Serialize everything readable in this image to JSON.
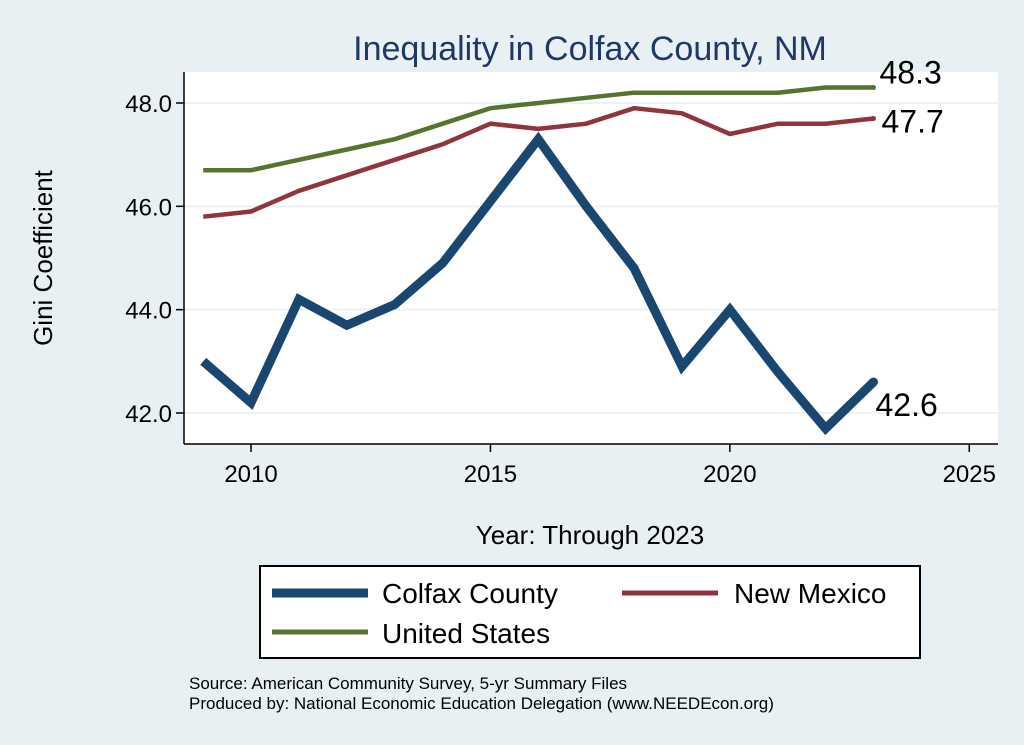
{
  "chart_data": {
    "type": "line",
    "title": "Inequality in Colfax County, NM",
    "xlabel": "Year: Through 2023",
    "ylabel": "Gini Coefficient",
    "xlim": [
      2008.6,
      2025.6
    ],
    "ylim": [
      41.4,
      48.6
    ],
    "x_ticks": [
      "2010",
      "2015",
      "2020",
      "2025"
    ],
    "y_ticks": [
      "42.0",
      "44.0",
      "46.0",
      "48.0"
    ],
    "x": [
      2009,
      2010,
      2011,
      2012,
      2013,
      2014,
      2015,
      2016,
      2017,
      2018,
      2019,
      2020,
      2021,
      2022,
      2023
    ],
    "series": [
      {
        "name": "Colfax County",
        "color": "#1a476f",
        "values": [
          43.0,
          42.2,
          44.2,
          43.7,
          44.1,
          44.9,
          46.1,
          47.3,
          46.0,
          44.8,
          42.9,
          44.0,
          42.8,
          41.7,
          42.6
        ],
        "end_label": "42.6"
      },
      {
        "name": "New Mexico",
        "color": "#90353b",
        "values": [
          45.8,
          45.9,
          46.3,
          46.6,
          46.9,
          47.2,
          47.6,
          47.5,
          47.6,
          47.9,
          47.8,
          47.4,
          47.6,
          47.6,
          47.7
        ],
        "end_label": "47.7"
      },
      {
        "name": "United States",
        "color": "#55752f",
        "values": [
          46.7,
          46.7,
          46.9,
          47.1,
          47.3,
          47.6,
          47.9,
          48.0,
          48.1,
          48.2,
          48.2,
          48.2,
          48.2,
          48.3,
          48.3
        ],
        "end_label": "48.3"
      }
    ],
    "legend": {
      "placement": "bottom",
      "entries": [
        "Colfax County",
        "New Mexico",
        "United States"
      ]
    },
    "source_lines": [
      "Source: American Community Survey, 5-yr Summary Files",
      "Produced by: National Economic Education Delegation (www.NEEDEcon.org)"
    ]
  }
}
